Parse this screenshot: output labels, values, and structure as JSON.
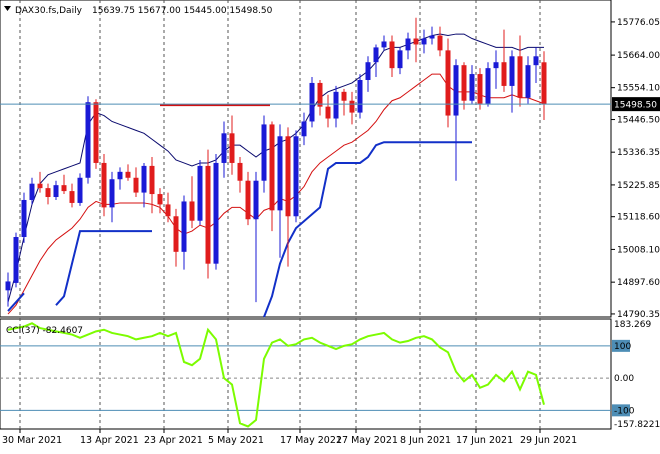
{
  "header": {
    "title": "DAX30.fs,Daily",
    "ohlc": "15639.75 15677.00 15445.00 15498.50"
  },
  "indicator": {
    "label": "CCI(37) -82.4607",
    "levels": [
      100,
      0.0,
      -100
    ],
    "ylim": [
      -157.8221,
      183.269
    ],
    "axis_labels": [
      "183.269",
      "100",
      "0.00",
      "-100",
      "-157.8221"
    ]
  },
  "price_axis": {
    "ticks": [
      "15776.05",
      "15664.00",
      "15554.10",
      "15446.50",
      "15336.35",
      "15225.85",
      "15118.60",
      "15008.10",
      "14897.60",
      "14790.35"
    ],
    "current_label": "15498.50",
    "current_value": 15498.5,
    "ylim": [
      14780,
      15850
    ]
  },
  "x_axis": {
    "labels": [
      "30 Mar 2021",
      "13 Apr 2021",
      "23 Apr 2021",
      "5 May 2021",
      "17 May 2021",
      "27 May 2021",
      "8 Jun 2021",
      "17 Jun 2021",
      "29 Jun 2021"
    ],
    "label_index": [
      0,
      10,
      18,
      26,
      35,
      42,
      50,
      57,
      65
    ]
  },
  "colors": {
    "bull": "#1a1ad6",
    "bear": "#e01c1c",
    "upper_line": "#0a0a6e",
    "lower_line": "#d41010",
    "support_line": "#1230c8",
    "resistance_line": "#d41010",
    "cci_line": "#7CFC00",
    "grid": "#555555",
    "level_line": "#4d8db5"
  },
  "chart_data": {
    "type": "candlestick",
    "symbol": "DAX30.fs",
    "timeframe": "Daily",
    "candles": [
      [
        14870,
        14930,
        14815,
        14900
      ],
      [
        14895,
        15065,
        14880,
        15050
      ],
      [
        15050,
        15200,
        15030,
        15175
      ],
      [
        15175,
        15250,
        15160,
        15230
      ],
      [
        15230,
        15270,
        15200,
        15215
      ],
      [
        15215,
        15230,
        15160,
        15185
      ],
      [
        15185,
        15240,
        15175,
        15225
      ],
      [
        15225,
        15260,
        15195,
        15205
      ],
      [
        15205,
        15230,
        15150,
        15165
      ],
      [
        15165,
        15265,
        15155,
        15250
      ],
      [
        15250,
        15525,
        15230,
        15505
      ],
      [
        15505,
        15515,
        15280,
        15300
      ],
      [
        15300,
        15330,
        15120,
        15150
      ],
      [
        15150,
        15270,
        15100,
        15245
      ],
      [
        15245,
        15285,
        15210,
        15270
      ],
      [
        15270,
        15295,
        15240,
        15250
      ],
      [
        15250,
        15285,
        15185,
        15200
      ],
      [
        15200,
        15300,
        15150,
        15290
      ],
      [
        15290,
        15320,
        15130,
        15195
      ],
      [
        15195,
        15215,
        15130,
        15160
      ],
      [
        15160,
        15200,
        15100,
        15120
      ],
      [
        15120,
        15145,
        14950,
        15000
      ],
      [
        15000,
        15190,
        14940,
        15170
      ],
      [
        15170,
        15255,
        15080,
        15105
      ],
      [
        15105,
        15310,
        15090,
        15290
      ],
      [
        15290,
        15345,
        14910,
        14960
      ],
      [
        14960,
        15330,
        14940,
        15300
      ],
      [
        15300,
        15440,
        15250,
        15400
      ],
      [
        15400,
        15460,
        15260,
        15300
      ],
      [
        15300,
        15320,
        15200,
        15240
      ],
      [
        15240,
        15270,
        15090,
        15110
      ],
      [
        15110,
        15270,
        14830,
        15240
      ],
      [
        15240,
        15460,
        15200,
        15430
      ],
      [
        15430,
        15440,
        15070,
        15140
      ],
      [
        15140,
        15430,
        14980,
        15390
      ],
      [
        15390,
        15420,
        14950,
        15120
      ],
      [
        15120,
        15410,
        15100,
        15390
      ],
      [
        15390,
        15470,
        15360,
        15440
      ],
      [
        15440,
        15590,
        15420,
        15570
      ],
      [
        15570,
        15580,
        15460,
        15490
      ],
      [
        15490,
        15530,
        15420,
        15450
      ],
      [
        15450,
        15560,
        15420,
        15540
      ],
      [
        15540,
        15550,
        15460,
        15510
      ],
      [
        15510,
        15540,
        15430,
        15470
      ],
      [
        15470,
        15600,
        15450,
        15580
      ],
      [
        15580,
        15660,
        15540,
        15640
      ],
      [
        15640,
        15700,
        15590,
        15690
      ],
      [
        15690,
        15730,
        15680,
        15710
      ],
      [
        15710,
        15730,
        15590,
        15620
      ],
      [
        15620,
        15690,
        15600,
        15680
      ],
      [
        15680,
        15740,
        15650,
        15720
      ],
      [
        15720,
        15790,
        15640,
        15700
      ],
      [
        15700,
        15750,
        15670,
        15720
      ],
      [
        15720,
        15760,
        15700,
        15730
      ],
      [
        15730,
        15760,
        15660,
        15680
      ],
      [
        15680,
        15720,
        15420,
        15460
      ],
      [
        15460,
        15650,
        15240,
        15630
      ],
      [
        15630,
        15640,
        15480,
        15510
      ],
      [
        15510,
        15630,
        15500,
        15600
      ],
      [
        15600,
        15620,
        15480,
        15500
      ],
      [
        15500,
        15640,
        15490,
        15620
      ],
      [
        15620,
        15680,
        15550,
        15640
      ],
      [
        15640,
        15750,
        15540,
        15560
      ],
      [
        15560,
        15680,
        15470,
        15660
      ],
      [
        15660,
        15730,
        15490,
        15520
      ],
      [
        15520,
        15660,
        15500,
        15630
      ],
      [
        15630,
        15690,
        15570,
        15660
      ],
      [
        15639.75,
        15677,
        15445,
        15498.5
      ]
    ],
    "upper_band": [
      14830,
      14930,
      15050,
      15160,
      15230,
      15260,
      15270,
      15280,
      15290,
      15300,
      15430,
      15470,
      15460,
      15440,
      15430,
      15420,
      15410,
      15400,
      15380,
      15360,
      15340,
      15310,
      15300,
      15290,
      15300,
      15300,
      15310,
      15340,
      15360,
      15360,
      15340,
      15320,
      15340,
      15350,
      15370,
      15380,
      15400,
      15430,
      15480,
      15520,
      15540,
      15550,
      15560,
      15570,
      15590,
      15610,
      15640,
      15680,
      15690,
      15690,
      15700,
      15710,
      15720,
      15730,
      15735,
      15730,
      15735,
      15735,
      15720,
      15710,
      15700,
      15690,
      15690,
      15690,
      15680,
      15690,
      15690,
      15690
    ],
    "lower_band": [
      14790,
      14820,
      14870,
      14920,
      14970,
      15010,
      15040,
      15060,
      15080,
      15110,
      15150,
      15170,
      15160,
      15160,
      15165,
      15165,
      15165,
      15165,
      15160,
      15150,
      15120,
      15080,
      15060,
      15070,
      15090,
      15080,
      15100,
      15130,
      15150,
      15150,
      15130,
      15110,
      15140,
      15150,
      15180,
      15170,
      15190,
      15220,
      15270,
      15300,
      15320,
      15340,
      15360,
      15370,
      15390,
      15410,
      15440,
      15480,
      15510,
      15520,
      15540,
      15560,
      15580,
      15600,
      15600,
      15560,
      15540,
      15540,
      15540,
      15530,
      15520,
      15520,
      15520,
      15530,
      15520,
      15520,
      15510,
      15500
    ],
    "support_segments": [
      {
        "points": [
          [
            0,
            14800
          ],
          [
            2,
            14860
          ]
        ]
      },
      {
        "points": [
          [
            6,
            14820
          ],
          [
            7,
            14850
          ],
          [
            8,
            14960
          ],
          [
            9,
            15070
          ],
          [
            18,
            15070
          ]
        ]
      },
      {
        "points": [
          [
            32,
            14780
          ],
          [
            33,
            14850
          ],
          [
            34,
            14960
          ],
          [
            35,
            15030
          ],
          [
            36,
            15080
          ],
          [
            39,
            15150
          ],
          [
            40,
            15280
          ],
          [
            41,
            15300
          ],
          [
            44,
            15300
          ],
          [
            45,
            15320
          ],
          [
            46,
            15360
          ],
          [
            47,
            15370
          ],
          [
            58,
            15370
          ],
          [
            58,
            15370
          ]
        ]
      }
    ],
    "resistance_segment": {
      "x_start": 19,
      "x_end": 30,
      "value": 15495
    },
    "cci": [
      150,
      155,
      160,
      170,
      155,
      150,
      145,
      140,
      135,
      125,
      135,
      145,
      150,
      140,
      135,
      130,
      120,
      125,
      130,
      140,
      130,
      140,
      50,
      40,
      60,
      150,
      120,
      0,
      -20,
      -140,
      -150,
      -130,
      60,
      110,
      120,
      100,
      105,
      120,
      125,
      110,
      100,
      90,
      100,
      105,
      120,
      130,
      135,
      140,
      120,
      110,
      115,
      125,
      130,
      120,
      95,
      80,
      20,
      -10,
      10,
      -30,
      -20,
      10,
      -10,
      20,
      -35,
      20,
      10,
      -82.4607
    ]
  }
}
